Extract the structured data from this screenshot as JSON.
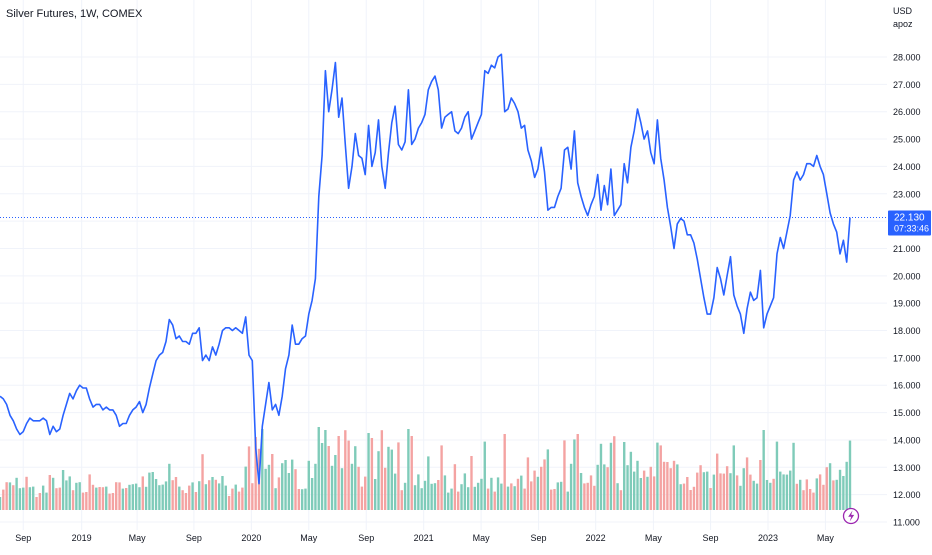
{
  "chart_data": {
    "type": "line",
    "title": "Silver Futures, 1W, COMEX",
    "currency_label": "USD",
    "currency_sub": "apoz",
    "last_price_label": "22.130",
    "countdown_label": "07:33:46",
    "line_color": "#2962FF",
    "vol_up_color": "#7FCBB9",
    "vol_down_color": "#F4A3A2",
    "grid": true,
    "ylim": [
      11.0,
      28.5
    ],
    "yticks": [
      11.0,
      12.0,
      13.0,
      14.0,
      15.0,
      16.0,
      17.0,
      18.0,
      19.0,
      20.0,
      21.0,
      22.0,
      23.0,
      24.0,
      25.0,
      26.0,
      27.0,
      28.0
    ],
    "ytick_labels": [
      "11.000",
      "12.000",
      "13.000",
      "14.000",
      "15.000",
      "16.000",
      "17.000",
      "18.000",
      "19.000",
      "20.000",
      "21.000",
      "22.000",
      "23.000",
      "24.000",
      "25.000",
      "26.000",
      "27.000",
      "28.000"
    ],
    "x_ticks": [
      {
        "label": "Sep",
        "t": 7.0
      },
      {
        "label": "2019",
        "t": 24.6
      },
      {
        "label": "May",
        "t": 41.3
      },
      {
        "label": "Sep",
        "t": 58.4
      },
      {
        "label": "2020",
        "t": 75.7
      },
      {
        "label": "May",
        "t": 93.0
      },
      {
        "label": "Sep",
        "t": 110.3
      },
      {
        "label": "2021",
        "t": 127.6
      },
      {
        "label": "May",
        "t": 144.9
      },
      {
        "label": "Sep",
        "t": 162.2
      },
      {
        "label": "2022",
        "t": 179.4
      },
      {
        "label": "May",
        "t": 196.8
      },
      {
        "label": "Sep",
        "t": 214.0
      },
      {
        "label": "2023",
        "t": 231.3
      },
      {
        "label": "May",
        "t": 248.6
      }
    ],
    "series": [
      {
        "values": [
          15.6,
          15.5,
          15.3,
          14.9,
          14.7,
          14.4,
          14.2,
          14.3,
          14.6,
          14.8,
          14.7,
          14.7,
          14.7,
          14.8,
          14.7,
          14.2,
          14.5,
          14.3,
          14.4,
          14.9,
          15.3,
          15.7,
          15.5,
          15.8,
          16.0,
          15.9,
          15.9,
          15.5,
          15.2,
          15.3,
          15.3,
          15.1,
          15.2,
          15.1,
          15.1,
          14.9,
          14.5,
          14.6,
          14.6,
          14.9,
          15.1,
          15.2,
          15.4,
          15.0,
          15.3,
          15.9,
          16.4,
          16.9,
          17.1,
          17.2,
          17.6,
          18.4,
          18.2,
          17.7,
          17.8,
          17.6,
          17.6,
          17.5,
          17.9,
          17.9,
          18.1,
          16.9,
          17.1,
          16.9,
          17.4,
          17.1,
          17.5,
          18.0,
          18.1,
          18.1,
          18.0,
          18.1,
          18.0,
          17.9,
          18.5,
          17.1,
          16.9,
          13.7,
          12.4,
          14.5,
          15.3,
          16.1,
          15.1,
          15.3,
          14.9,
          15.6,
          16.6,
          17.1,
          18.2,
          17.5,
          17.5,
          17.7,
          17.8,
          18.6,
          19.1,
          19.9,
          22.9,
          24.4,
          27.5,
          26.0,
          26.8,
          27.8,
          25.8,
          26.5,
          24.8,
          23.2,
          24.0,
          25.2,
          24.4,
          24.3,
          23.7,
          25.5,
          24.0,
          24.5,
          25.7,
          24.0,
          23.2,
          24.5,
          25.6,
          26.2,
          24.8,
          24.6,
          24.9,
          26.8,
          24.8,
          25.0,
          25.4,
          25.6,
          25.9,
          26.8,
          27.1,
          27.3,
          26.8,
          25.4,
          25.8,
          25.9,
          26.0,
          25.3,
          25.2,
          25.4,
          25.8,
          26.0,
          25.0,
          25.3,
          25.6,
          25.9,
          27.5,
          27.4,
          27.7,
          27.6,
          28.0,
          28.1,
          26.0,
          26.1,
          26.5,
          26.3,
          26.0,
          25.4,
          25.5,
          24.6,
          24.2,
          23.6,
          23.9,
          24.7,
          23.8,
          22.4,
          22.5,
          22.5,
          22.9,
          23.2,
          24.6,
          24.7,
          23.9,
          25.3,
          23.4,
          22.9,
          22.5,
          22.2,
          22.6,
          22.9,
          23.7,
          22.4,
          23.3,
          22.6,
          23.9,
          22.2,
          22.4,
          22.6,
          24.1,
          23.4,
          24.7,
          25.3,
          26.1,
          25.6,
          25.0,
          25.3,
          24.5,
          24.1,
          25.7,
          24.3,
          23.5,
          22.5,
          21.8,
          21.0,
          21.9,
          22.1,
          22.0,
          21.5,
          21.5,
          21.2,
          20.6,
          19.9,
          19.2,
          18.6,
          18.6,
          19.2,
          20.3,
          19.9,
          19.3,
          20.0,
          20.7,
          19.3,
          18.9,
          18.6,
          17.9,
          18.8,
          19.4,
          19.1,
          19.2,
          20.2,
          18.1,
          18.6,
          18.9,
          19.2,
          20.8,
          21.4,
          21.0,
          21.6,
          22.2,
          23.5,
          23.8,
          23.5,
          23.7,
          24.1,
          24.1,
          24.0,
          24.4,
          24.0,
          23.7,
          23.0,
          22.3,
          21.9,
          21.6,
          20.8,
          21.3,
          20.5,
          22.13
        ]
      }
    ],
    "volume_up": [
      true,
      false,
      false,
      true,
      false,
      true,
      true,
      true,
      false,
      true,
      true,
      false,
      false,
      true,
      true,
      false,
      true,
      false,
      false,
      true,
      true,
      true,
      false,
      true,
      true,
      false,
      false,
      false,
      false,
      true,
      false,
      false,
      true,
      false,
      false,
      false,
      false,
      true,
      false,
      true,
      true,
      true,
      true,
      false,
      true,
      true,
      true,
      true,
      true,
      true,
      true,
      true,
      false,
      false,
      true,
      false,
      false,
      false,
      true,
      false,
      true,
      false,
      true,
      false,
      true,
      false,
      true,
      true,
      true,
      false,
      false,
      true,
      false,
      false,
      true,
      false,
      false,
      false,
      false,
      true,
      true,
      true,
      false,
      true,
      false,
      true,
      true,
      true,
      true,
      false,
      false,
      true,
      true,
      true,
      true,
      true,
      true,
      true,
      true,
      false,
      true,
      true,
      false,
      true,
      false,
      false,
      true,
      true,
      false,
      false,
      false,
      true,
      false,
      true,
      true,
      false,
      false,
      true,
      true,
      true,
      false,
      false,
      true,
      true,
      false,
      true,
      true,
      true,
      true,
      true,
      true,
      true,
      false,
      false,
      true,
      true,
      true,
      false,
      false,
      true,
      true,
      true,
      false,
      true,
      true,
      true,
      true,
      false,
      true,
      false,
      true,
      true,
      false,
      true,
      false,
      true,
      false,
      true,
      false,
      false,
      false,
      false,
      true,
      false,
      false,
      true,
      false,
      false,
      true,
      true,
      false,
      true,
      true,
      true,
      false,
      true,
      false,
      false,
      false,
      false,
      true,
      true,
      true,
      false,
      true,
      false,
      true,
      false,
      true,
      true,
      true,
      true,
      true,
      true,
      false,
      true,
      false,
      false,
      true,
      false,
      false,
      false,
      false,
      false,
      true,
      true,
      false,
      false,
      false,
      false,
      false,
      false,
      true,
      true,
      false,
      true,
      false,
      false,
      false,
      false,
      true,
      true,
      false,
      true,
      true,
      false,
      false,
      true,
      true,
      false,
      true,
      true,
      true,
      false,
      true,
      true,
      true,
      true,
      true,
      true,
      false,
      true,
      false,
      false,
      false,
      false,
      true,
      false,
      false,
      false,
      true,
      false,
      true,
      true,
      true,
      true,
      true,
      false,
      true,
      true
    ]
  },
  "icons": {
    "lightning": "lightning-bolt-icon"
  }
}
